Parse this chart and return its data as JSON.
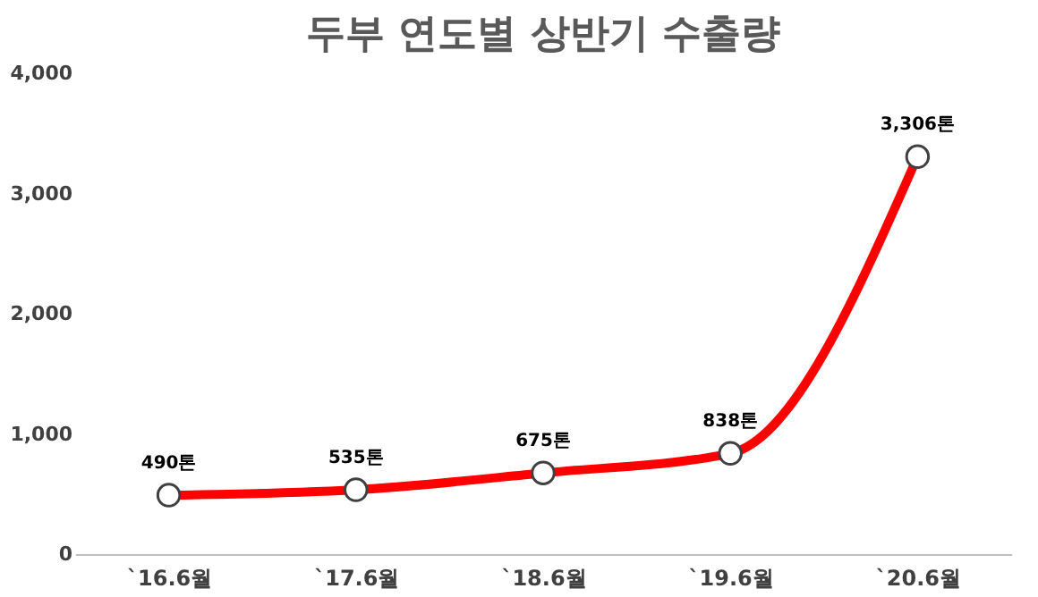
{
  "chart_data": {
    "type": "line",
    "title": "두부 연도별 상반기 수출량",
    "categories": [
      "`16.6월",
      "`17.6월",
      "`18.6월",
      "`19.6월",
      "`20.6월"
    ],
    "series": [
      {
        "color": "#ff0000",
        "values": [
          490,
          535,
          675,
          838,
          3306
        ],
        "value_labels": [
          "490톤",
          "535톤",
          "675톤",
          "838톤",
          "3,306톤"
        ]
      }
    ],
    "ylim": [
      0,
      4000
    ],
    "yticks": [
      {
        "value": 0,
        "label": "0"
      },
      {
        "value": 1000,
        "label": "1,000"
      },
      {
        "value": 2000,
        "label": "2,000"
      },
      {
        "value": 3000,
        "label": "3,000"
      },
      {
        "value": 4000,
        "label": "4,000"
      }
    ],
    "grid": false,
    "marker": "circle",
    "line_style": "solid"
  }
}
